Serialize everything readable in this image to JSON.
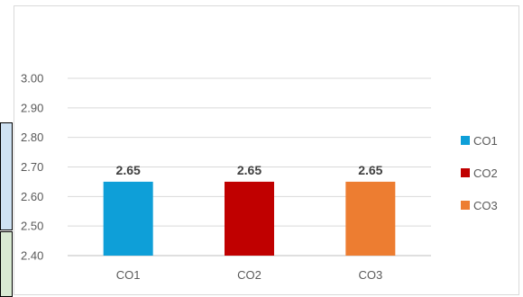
{
  "chart_data": {
    "type": "bar",
    "categories": [
      "CO1",
      "CO2",
      "CO3"
    ],
    "values": [
      2.65,
      2.65,
      2.65
    ],
    "data_labels": [
      "2.65",
      "2.65",
      "2.65"
    ],
    "colors": [
      "#0e9fd8",
      "#c00000",
      "#ed7d31"
    ],
    "legend": [
      {
        "label": "CO1",
        "color": "#0e9fd8"
      },
      {
        "label": "CO2",
        "color": "#c00000"
      },
      {
        "label": "CO3",
        "color": "#ed7d31"
      }
    ],
    "legend_position": "right",
    "y_ticks": [
      "2.40",
      "2.50",
      "2.60",
      "2.70",
      "2.80",
      "2.90",
      "3.00"
    ],
    "ylim": [
      2.4,
      3.0
    ],
    "grid": true,
    "title": "",
    "xlabel": "",
    "ylabel": ""
  }
}
